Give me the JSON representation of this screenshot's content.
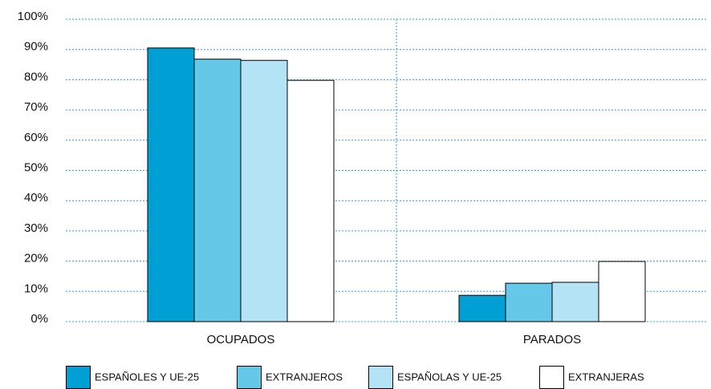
{
  "chart_data": {
    "type": "bar",
    "categories": [
      "OCUPADOS",
      "PARADOS"
    ],
    "series": [
      {
        "name": "ESPAÑOLES Y UE-25",
        "color": "#009fd4",
        "values": [
          90.5,
          8.7
        ]
      },
      {
        "name": "EXTRANJEROS",
        "color": "#66c8e8",
        "values": [
          86.8,
          12.7
        ]
      },
      {
        "name": "ESPAÑOLAS Y UE-25",
        "color": "#b3e3f4",
        "values": [
          86.4,
          13
        ]
      },
      {
        "name": "EXTRANJERAS",
        "color": "#ffffff",
        "values": [
          79.8,
          19.9
        ]
      }
    ],
    "ylim": [
      0,
      100
    ],
    "yticks": [
      {
        "value": 0,
        "label": "0%"
      },
      {
        "value": 10,
        "label": "10%"
      },
      {
        "value": 20,
        "label": "20%"
      },
      {
        "value": 30,
        "label": "30%"
      },
      {
        "value": 40,
        "label": "40%"
      },
      {
        "value": 50,
        "label": "50%"
      },
      {
        "value": 60,
        "label": "60%"
      },
      {
        "value": 70,
        "label": "70%"
      },
      {
        "value": 80,
        "label": "80%"
      },
      {
        "value": 90,
        "label": "90%"
      },
      {
        "value": 100,
        "label": "100%"
      }
    ],
    "grid": true
  }
}
